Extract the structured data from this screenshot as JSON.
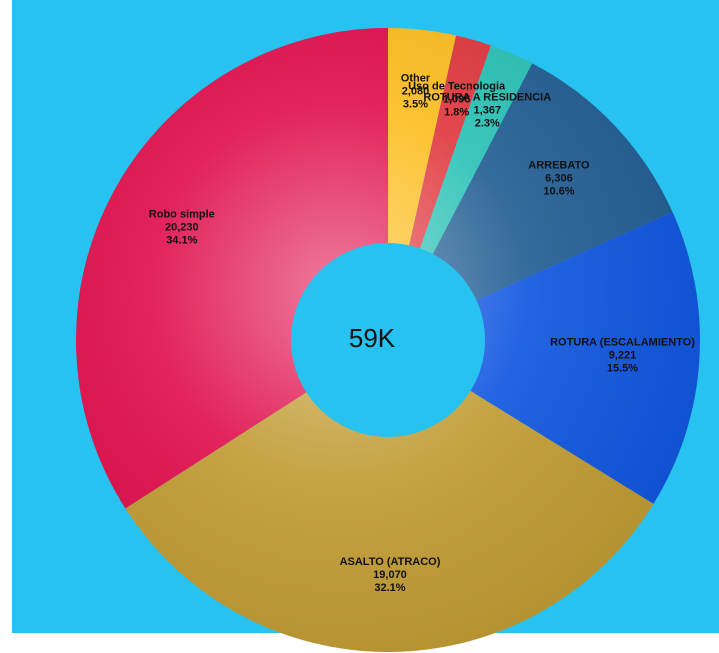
{
  "chart_data": {
    "type": "donut",
    "center_label": "59K",
    "categories": [
      "Other",
      "Uso de Tecnologia",
      "ROTURA A RESIDENCIA",
      "ARREBATO",
      "ROTURA (ESCALAMIENTO)",
      "ASALTO (ATRACO)",
      "Robo simple"
    ],
    "values": [
      2080,
      1096,
      1367,
      6306,
      9221,
      19070,
      20230
    ],
    "value_labels": [
      "2,080",
      "1,096",
      "1,367",
      "6,306",
      "9,221",
      "19,070",
      "20,230"
    ],
    "percent_labels": [
      "3.5%",
      "1.8%",
      "2.3%",
      "10.6%",
      "15.5%",
      "32.1%",
      "34.1%"
    ],
    "colors": [
      "#fcbd1f",
      "#e0393f",
      "#2cc2b6",
      "#245f94",
      "#1257e0",
      "#c29c35",
      "#e0104e"
    ]
  }
}
